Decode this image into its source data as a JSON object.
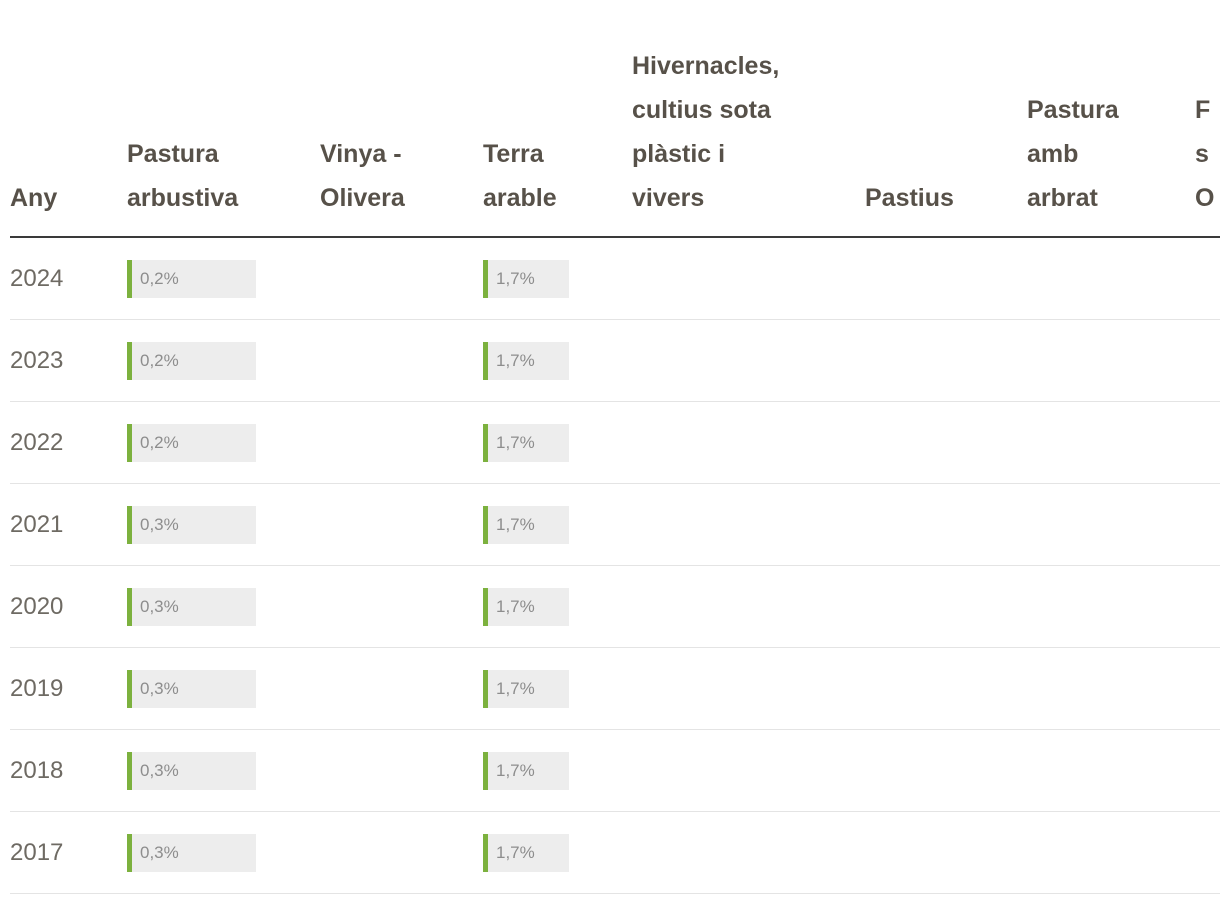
{
  "colors": {
    "background": "#ffffff",
    "accent": "#7cb13e",
    "bar_bg": "#ededed",
    "header_text": "#575149",
    "year_text": "#6e6a63",
    "value_text": "#8d8d8d",
    "border_dark": "#3a3a3a",
    "border_light": "#e4e4e4"
  },
  "table": {
    "columns": [
      "Any",
      "Pastura\narbustiva",
      "Vinya -\nOlivera",
      "Terra\narable",
      "Hivernacles,\ncultius sota\nplàstic i\nvivers",
      "Pastius",
      "Pastura\namb\narbrat",
      "F\ns\nO"
    ],
    "rows": [
      {
        "year": "2024",
        "pastura_arbustiva": "0,2%",
        "terra_arable": "1,7%"
      },
      {
        "year": "2023",
        "pastura_arbustiva": "0,2%",
        "terra_arable": "1,7%"
      },
      {
        "year": "2022",
        "pastura_arbustiva": "0,2%",
        "terra_arable": "1,7%"
      },
      {
        "year": "2021",
        "pastura_arbustiva": "0,3%",
        "terra_arable": "1,7%"
      },
      {
        "year": "2020",
        "pastura_arbustiva": "0,3%",
        "terra_arable": "1,7%"
      },
      {
        "year": "2019",
        "pastura_arbustiva": "0,3%",
        "terra_arable": "1,7%"
      },
      {
        "year": "2018",
        "pastura_arbustiva": "0,3%",
        "terra_arable": "1,7%"
      },
      {
        "year": "2017",
        "pastura_arbustiva": "0,3%",
        "terra_arable": "1,7%"
      }
    ]
  },
  "chart_data": {
    "type": "table",
    "title": "",
    "columns": [
      "Any",
      "Pastura arbustiva",
      "Vinya - Olivera",
      "Terra arable",
      "Hivernacles, cultius sota plàstic i vivers",
      "Pastius",
      "Pastura amb arbrat"
    ],
    "categories": [
      "2024",
      "2023",
      "2022",
      "2021",
      "2020",
      "2019",
      "2018",
      "2017"
    ],
    "series": [
      {
        "name": "Pastura arbustiva",
        "unit": "%",
        "values": [
          0.2,
          0.2,
          0.2,
          0.3,
          0.3,
          0.3,
          0.3,
          0.3
        ]
      },
      {
        "name": "Terra arable",
        "unit": "%",
        "values": [
          1.7,
          1.7,
          1.7,
          1.7,
          1.7,
          1.7,
          1.7,
          1.7
        ]
      }
    ]
  }
}
